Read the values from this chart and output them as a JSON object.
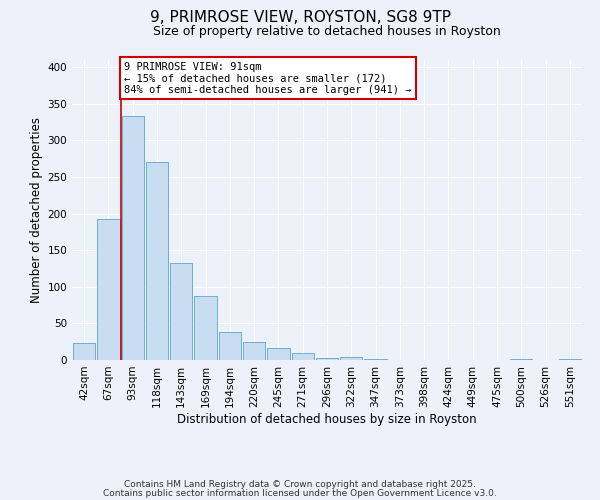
{
  "title": "9, PRIMROSE VIEW, ROYSTON, SG8 9TP",
  "subtitle": "Size of property relative to detached houses in Royston",
  "xlabel": "Distribution of detached houses by size in Royston",
  "ylabel": "Number of detached properties",
  "bar_labels": [
    "42sqm",
    "67sqm",
    "93sqm",
    "118sqm",
    "143sqm",
    "169sqm",
    "194sqm",
    "220sqm",
    "245sqm",
    "271sqm",
    "296sqm",
    "322sqm",
    "347sqm",
    "373sqm",
    "398sqm",
    "424sqm",
    "449sqm",
    "475sqm",
    "500sqm",
    "526sqm",
    "551sqm"
  ],
  "bar_heights": [
    23,
    193,
    334,
    271,
    132,
    88,
    38,
    25,
    17,
    9,
    3,
    4,
    2,
    0,
    0,
    0,
    0,
    0,
    1,
    0,
    1
  ],
  "bar_color": "#c9ddf0",
  "bar_edge_color": "#6aaed6",
  "red_line_index": 2,
  "annotation_title": "9 PRIMROSE VIEW: 91sqm",
  "annotation_line1": "← 15% of detached houses are smaller (172)",
  "annotation_line2": "84% of semi-detached houses are larger (941) →",
  "annotation_box_color": "#ffffff",
  "annotation_box_edge": "#cc0000",
  "red_line_color": "#cc0000",
  "ylim": [
    0,
    410
  ],
  "yticks": [
    0,
    50,
    100,
    150,
    200,
    250,
    300,
    350,
    400
  ],
  "bg_color": "#edf2fa",
  "footer_line1": "Contains HM Land Registry data © Crown copyright and database right 2025.",
  "footer_line2": "Contains public sector information licensed under the Open Government Licence v3.0.",
  "title_fontsize": 11,
  "subtitle_fontsize": 9,
  "axis_label_fontsize": 8.5,
  "tick_fontsize": 7.5,
  "annotation_fontsize": 7.5,
  "footer_fontsize": 6.5
}
